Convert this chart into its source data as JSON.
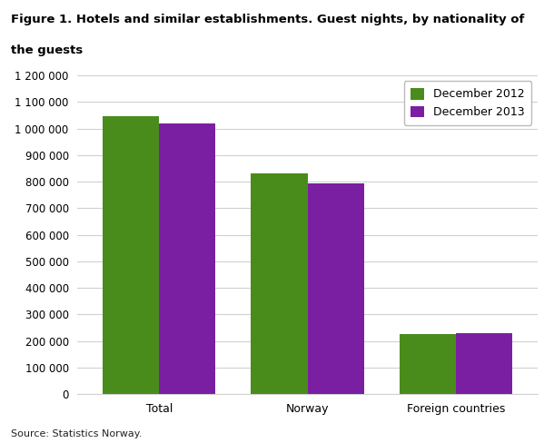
{
  "title_line1": "Figure 1. Hotels and similar establishments. Guest nights, by nationality of",
  "title_line2": "the guests",
  "categories": [
    "Total",
    "Norway",
    "Foreign countries"
  ],
  "series": [
    {
      "label": "December 2012",
      "values": [
        1045000,
        830000,
        225000
      ],
      "color": "#4a8c1c"
    },
    {
      "label": "December 2013",
      "values": [
        1020000,
        795000,
        230000
      ],
      "color": "#7b1fa2"
    }
  ],
  "ylim": [
    0,
    1200000
  ],
  "yticks": [
    0,
    100000,
    200000,
    300000,
    400000,
    500000,
    600000,
    700000,
    800000,
    900000,
    1000000,
    1100000,
    1200000
  ],
  "ytick_labels": [
    "0",
    "100 000",
    "200 000",
    "300 000",
    "400 000",
    "500 000",
    "600 000",
    "700 000",
    "800 000",
    "900 000",
    "1 000 000",
    "1 100 000",
    "1 200 000"
  ],
  "source_text": "Source: Statistics Norway.",
  "background_color": "#ffffff",
  "grid_color": "#d0d0d0",
  "bar_width": 0.38,
  "legend_loc": "upper right"
}
